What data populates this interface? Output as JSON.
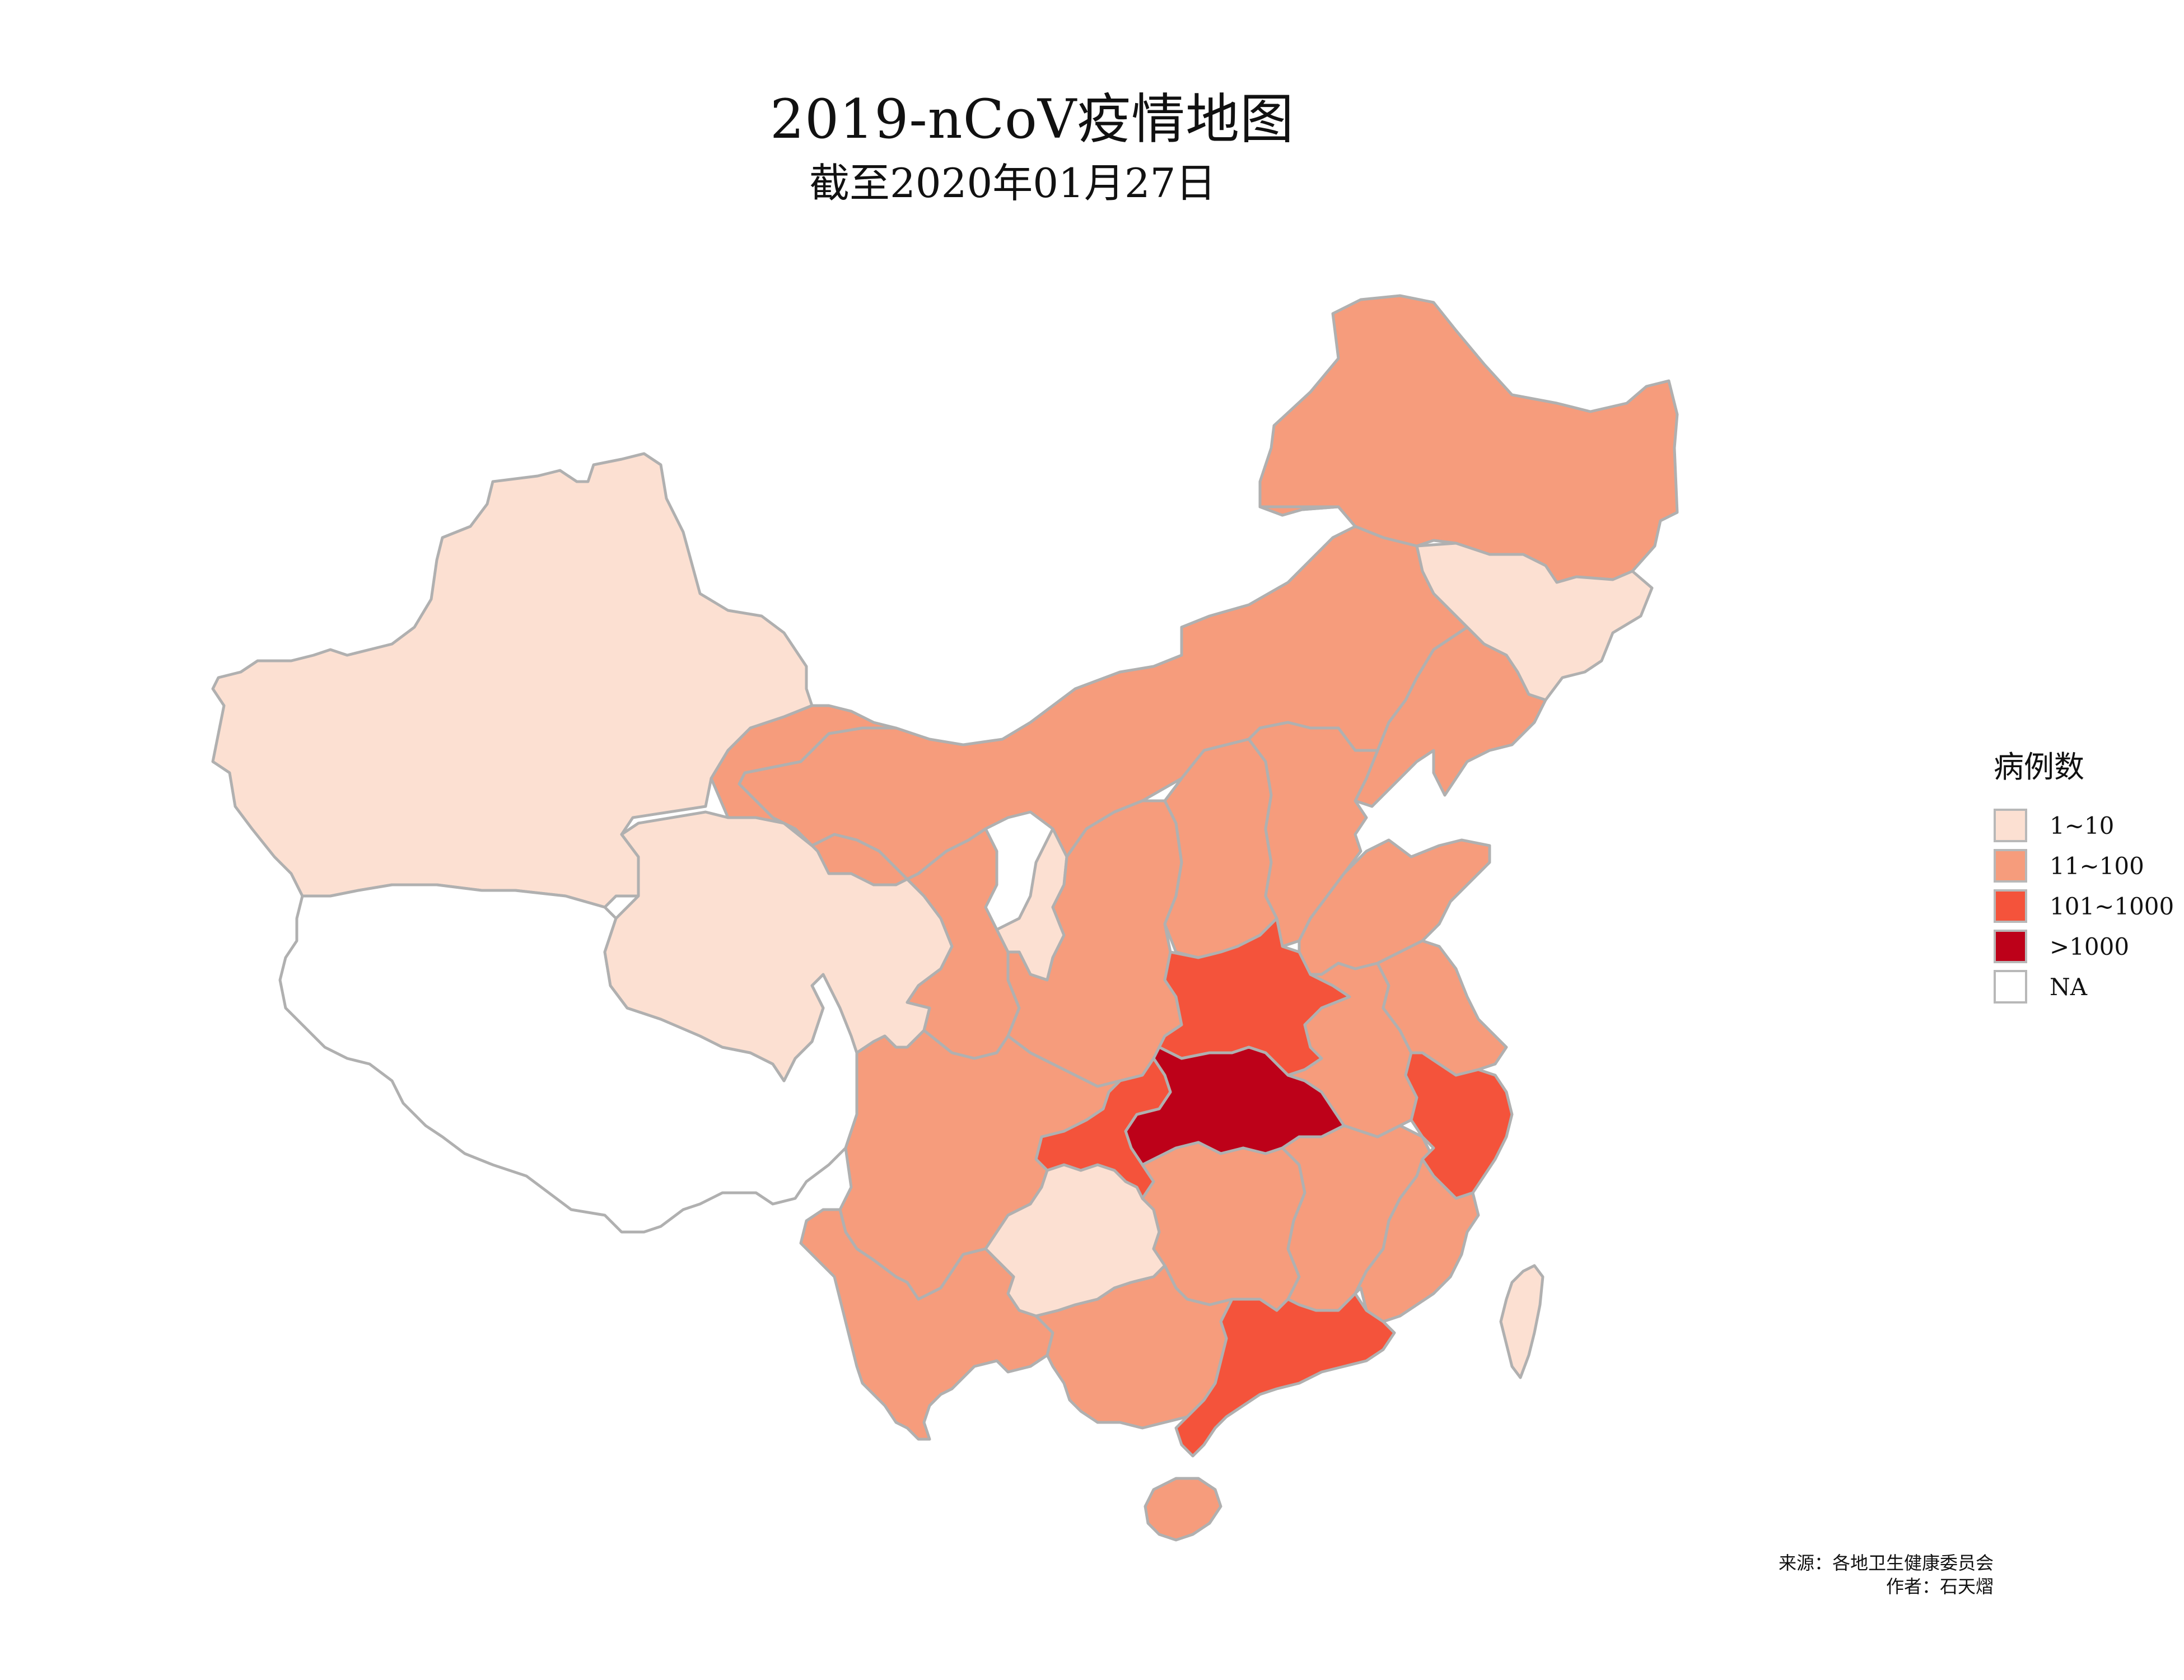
{
  "title": "2019-nCoV疫情地图",
  "subtitle": "截至2020年01月27日",
  "legend": {
    "title": "病例数",
    "items": [
      {
        "label": "1~10",
        "color": "#fce0d2"
      },
      {
        "label": "11~100",
        "color": "#f69c7c"
      },
      {
        "label": "101~1000",
        "color": "#f4533b"
      },
      {
        "label": ">1000",
        "color": "#bd0119"
      },
      {
        "label": "NA",
        "color": "#ffffff"
      }
    ]
  },
  "credits": {
    "source": "来源：各地卫生健康委员会",
    "author": "作者：石天熠"
  },
  "map_data": {
    "regions": [
      {
        "name": "黑龙江",
        "category": "11~100"
      },
      {
        "name": "吉林",
        "category": "1~10"
      },
      {
        "name": "辽宁",
        "category": "11~100"
      },
      {
        "name": "内蒙古",
        "category": "11~100"
      },
      {
        "name": "新疆",
        "category": "1~10"
      },
      {
        "name": "西藏",
        "category": "NA"
      },
      {
        "name": "青海",
        "category": "1~10"
      },
      {
        "name": "甘肃",
        "category": "11~100"
      },
      {
        "name": "宁夏",
        "category": "1~10"
      },
      {
        "name": "陕西",
        "category": "11~100"
      },
      {
        "name": "山西",
        "category": "11~100"
      },
      {
        "name": "河北",
        "category": "11~100"
      },
      {
        "name": "山东",
        "category": "11~100"
      },
      {
        "name": "河南",
        "category": "101~1000"
      },
      {
        "name": "湖北",
        "category": ">1000"
      },
      {
        "name": "重庆",
        "category": "101~1000"
      },
      {
        "name": "四川",
        "category": "11~100"
      },
      {
        "name": "贵州",
        "category": "1~10"
      },
      {
        "name": "云南",
        "category": "11~100"
      },
      {
        "name": "湖南",
        "category": "11~100"
      },
      {
        "name": "江西",
        "category": "11~100"
      },
      {
        "name": "安徽",
        "category": "11~100"
      },
      {
        "name": "江苏",
        "category": "11~100"
      },
      {
        "name": "浙江",
        "category": "101~1000"
      },
      {
        "name": "福建",
        "category": "11~100"
      },
      {
        "name": "广东",
        "category": "101~1000"
      },
      {
        "name": "广西",
        "category": "11~100"
      },
      {
        "name": "海南",
        "category": "11~100"
      },
      {
        "name": "台湾",
        "category": "1~10"
      }
    ]
  }
}
